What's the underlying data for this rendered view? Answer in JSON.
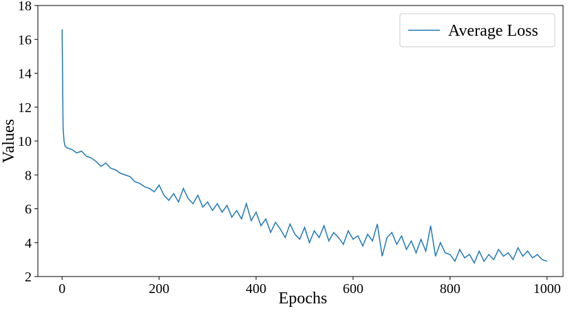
{
  "chart_data": {
    "type": "line",
    "x_label": "Epochs",
    "y_label": "Values",
    "legend": "upper right",
    "xlim": [
      -50,
      1033
    ],
    "ylim": [
      2,
      18
    ],
    "xticks": [
      0,
      200,
      400,
      600,
      800,
      1000
    ],
    "yticks": [
      2,
      4,
      6,
      8,
      10,
      12,
      14,
      16,
      18
    ],
    "x": [
      0,
      2,
      4,
      6,
      10,
      20,
      30,
      40,
      50,
      60,
      70,
      80,
      90,
      100,
      110,
      120,
      130,
      140,
      150,
      160,
      170,
      180,
      190,
      200,
      210,
      220,
      230,
      240,
      250,
      260,
      270,
      280,
      290,
      300,
      310,
      320,
      330,
      340,
      350,
      360,
      370,
      380,
      390,
      400,
      410,
      420,
      430,
      440,
      450,
      460,
      470,
      480,
      490,
      500,
      510,
      520,
      530,
      540,
      550,
      560,
      570,
      580,
      590,
      600,
      610,
      620,
      630,
      640,
      650,
      660,
      670,
      680,
      690,
      700,
      710,
      720,
      730,
      740,
      750,
      760,
      770,
      780,
      790,
      800,
      810,
      820,
      830,
      840,
      850,
      860,
      870,
      880,
      890,
      900,
      910,
      920,
      930,
      940,
      950,
      960,
      970,
      980,
      990,
      1000
    ],
    "series": [
      {
        "name": "Average Loss",
        "color": "#1f77b4",
        "values": [
          16.6,
          10.8,
          10.0,
          9.7,
          9.6,
          9.5,
          9.3,
          9.4,
          9.1,
          9.0,
          8.8,
          8.5,
          8.7,
          8.4,
          8.3,
          8.1,
          8.0,
          7.9,
          7.6,
          7.5,
          7.3,
          7.2,
          7.0,
          7.4,
          6.8,
          6.5,
          6.9,
          6.4,
          7.2,
          6.6,
          6.3,
          6.8,
          6.1,
          6.4,
          5.9,
          6.3,
          5.8,
          6.2,
          5.5,
          5.9,
          5.4,
          6.3,
          5.3,
          5.8,
          5.0,
          5.4,
          4.6,
          5.2,
          4.8,
          4.3,
          5.1,
          4.5,
          4.2,
          4.9,
          4.0,
          4.7,
          4.3,
          5.0,
          4.1,
          4.6,
          4.3,
          3.9,
          4.7,
          4.2,
          4.4,
          3.8,
          4.5,
          4.1,
          5.1,
          3.2,
          4.3,
          4.6,
          3.9,
          4.4,
          3.6,
          4.1,
          3.4,
          4.2,
          3.5,
          5.0,
          3.2,
          4.0,
          3.4,
          3.3,
          2.9,
          3.6,
          3.1,
          3.3,
          2.8,
          3.5,
          2.9,
          3.3,
          3.0,
          3.6,
          3.2,
          3.4,
          3.0,
          3.7,
          3.2,
          3.5,
          3.1,
          3.3,
          3.0,
          2.9
        ]
      }
    ]
  }
}
